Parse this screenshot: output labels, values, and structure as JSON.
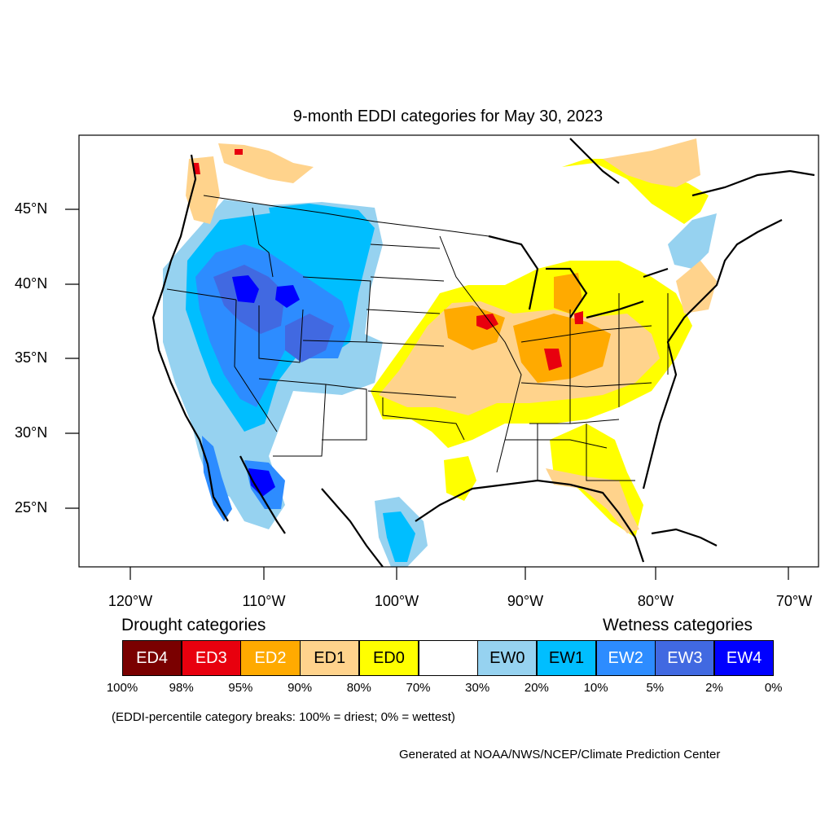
{
  "title": "9-month EDDI categories for May 30, 2023",
  "axes": {
    "lat_labels": [
      "45°N",
      "40°N",
      "35°N",
      "30°N",
      "25°N"
    ],
    "lon_labels": [
      "120°W",
      "110°W",
      "100°W",
      "90°W",
      "80°W",
      "70°W"
    ]
  },
  "legend": {
    "drought_heading": "Drought categories",
    "wetness_heading": "Wetness categories",
    "categories": [
      {
        "label": "ED4",
        "color": "#7a0000",
        "text_color": "#ffffff"
      },
      {
        "label": "ED3",
        "color": "#e8000e",
        "text_color": "#ffffff"
      },
      {
        "label": "ED2",
        "color": "#ffaa00",
        "text_color": "#ffffff"
      },
      {
        "label": "ED1",
        "color": "#ffd38c",
        "text_color": "#000000"
      },
      {
        "label": "ED0",
        "color": "#ffff00",
        "text_color": "#000000"
      },
      {
        "label": "",
        "color": "#ffffff",
        "text_color": "#000000"
      },
      {
        "label": "EW0",
        "color": "#96d2f0",
        "text_color": "#000000"
      },
      {
        "label": "EW1",
        "color": "#00beff",
        "text_color": "#000000"
      },
      {
        "label": "EW2",
        "color": "#2d8cff",
        "text_color": "#ffffff"
      },
      {
        "label": "EW3",
        "color": "#4169e1",
        "text_color": "#ffffff"
      },
      {
        "label": "EW4",
        "color": "#0000ff",
        "text_color": "#ffffff"
      }
    ],
    "breaks": [
      "100%",
      "98%",
      "95%",
      "90%",
      "80%",
      "70%",
      "30%",
      "20%",
      "10%",
      "5%",
      "2%",
      "0%"
    ]
  },
  "note": "(EDDI-percentile category breaks: 100% = driest; 0% = wettest)",
  "credit": "Generated at NOAA/NWS/NCEP/Climate Prediction Center",
  "colors": {
    "frame": "#000000",
    "coast": "#000000",
    "state_lines": "#000000"
  }
}
